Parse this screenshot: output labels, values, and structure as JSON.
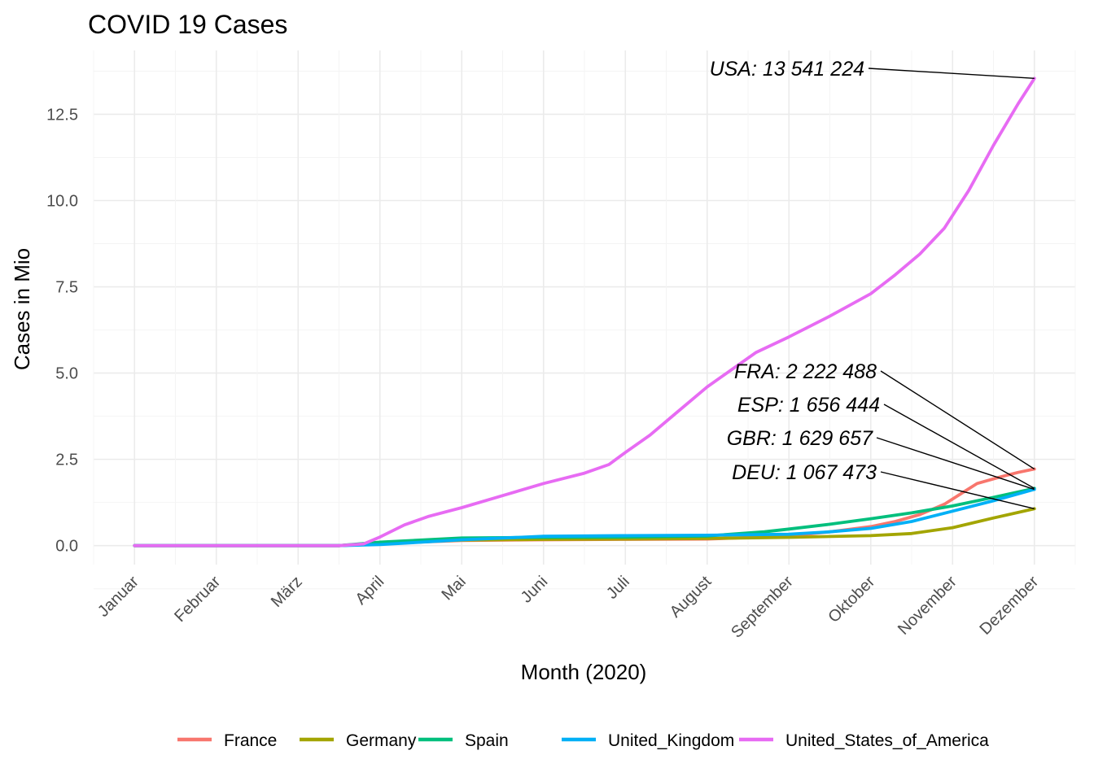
{
  "chart_data": {
    "type": "line",
    "title": "COVID 19 Cases",
    "xlabel": "Month (2020)",
    "ylabel": "Cases in Mio",
    "ylim": [
      -0.55,
      14.35
    ],
    "y_ticks": [
      0.0,
      2.5,
      5.0,
      7.5,
      10.0,
      12.5
    ],
    "y_tick_labels": [
      "0.0",
      "2.5",
      "5.0",
      "7.5",
      "10.0",
      "12.5"
    ],
    "x_categories": [
      "Januar",
      "Februar",
      "März",
      "April",
      "Mai",
      "Juni",
      "Juli",
      "August",
      "September",
      "Oktober",
      "November",
      "Dezember"
    ],
    "x_unit_note": "x values are months of 2020 (1 = Januar, 12 = Dezember)",
    "xlim": [
      0.5,
      12.5
    ],
    "grid": true,
    "legend_position": "bottom",
    "series": [
      {
        "name": "France",
        "color": "#F8766D",
        "x": [
          1.0,
          3.5,
          4.0,
          5.0,
          6.0,
          7.0,
          8.0,
          9.0,
          9.5,
          10.0,
          10.3,
          10.6,
          10.9,
          11.1,
          11.3,
          11.6,
          11.8,
          12.0
        ],
        "y": [
          0.0,
          0.0,
          0.06,
          0.15,
          0.17,
          0.18,
          0.19,
          0.28,
          0.4,
          0.55,
          0.7,
          0.9,
          1.2,
          1.5,
          1.8,
          2.0,
          2.12,
          2.22
        ]
      },
      {
        "name": "Germany",
        "color": "#A3A500",
        "x": [
          1.0,
          3.5,
          4.0,
          5.0,
          6.0,
          7.0,
          8.0,
          9.0,
          10.0,
          10.5,
          11.0,
          11.5,
          12.0
        ],
        "y": [
          0.0,
          0.0,
          0.07,
          0.16,
          0.18,
          0.19,
          0.21,
          0.24,
          0.29,
          0.35,
          0.52,
          0.8,
          1.07
        ]
      },
      {
        "name": "Spain",
        "color": "#00BF7D",
        "x": [
          1.0,
          3.5,
          4.0,
          5.0,
          6.0,
          7.0,
          8.0,
          8.7,
          9.0,
          9.5,
          10.0,
          10.5,
          11.0,
          11.5,
          12.0
        ],
        "y": [
          0.0,
          0.0,
          0.1,
          0.22,
          0.24,
          0.25,
          0.28,
          0.4,
          0.48,
          0.62,
          0.78,
          0.95,
          1.15,
          1.4,
          1.66
        ]
      },
      {
        "name": "United_Kingdom",
        "color": "#00B0F6",
        "x": [
          1.0,
          3.5,
          4.0,
          5.0,
          6.0,
          7.0,
          8.0,
          9.0,
          9.5,
          10.0,
          10.5,
          11.0,
          11.5,
          12.0
        ],
        "y": [
          0.0,
          0.0,
          0.03,
          0.17,
          0.27,
          0.29,
          0.3,
          0.33,
          0.4,
          0.5,
          0.7,
          1.0,
          1.3,
          1.63
        ]
      },
      {
        "name": "United_States_of_America",
        "color": "#E76BF3",
        "x": [
          1.0,
          3.5,
          3.8,
          4.0,
          4.3,
          4.6,
          5.0,
          5.5,
          6.0,
          6.5,
          6.8,
          7.0,
          7.3,
          7.6,
          8.0,
          8.3,
          8.6,
          9.0,
          9.5,
          10.0,
          10.3,
          10.6,
          10.9,
          11.2,
          11.5,
          11.8,
          12.0
        ],
        "y": [
          0.0,
          0.0,
          0.05,
          0.25,
          0.6,
          0.85,
          1.1,
          1.45,
          1.8,
          2.1,
          2.35,
          2.7,
          3.2,
          3.8,
          4.6,
          5.1,
          5.6,
          6.05,
          6.65,
          7.3,
          7.85,
          8.45,
          9.2,
          10.3,
          11.6,
          12.8,
          13.54
        ]
      }
    ],
    "annotations": [
      {
        "text": "USA: 13 541 224",
        "target_x": 12.0,
        "target_y": 13.54
      },
      {
        "text": "FRA: 2 222 488",
        "target_x": 12.0,
        "target_y": 2.22
      },
      {
        "text": "ESP: 1 656 444",
        "target_x": 12.0,
        "target_y": 1.66
      },
      {
        "text": "GBR: 1 629 657",
        "target_x": 12.0,
        "target_y": 1.63
      },
      {
        "text": "DEU: 1 067 473",
        "target_x": 12.0,
        "target_y": 1.07
      }
    ]
  }
}
